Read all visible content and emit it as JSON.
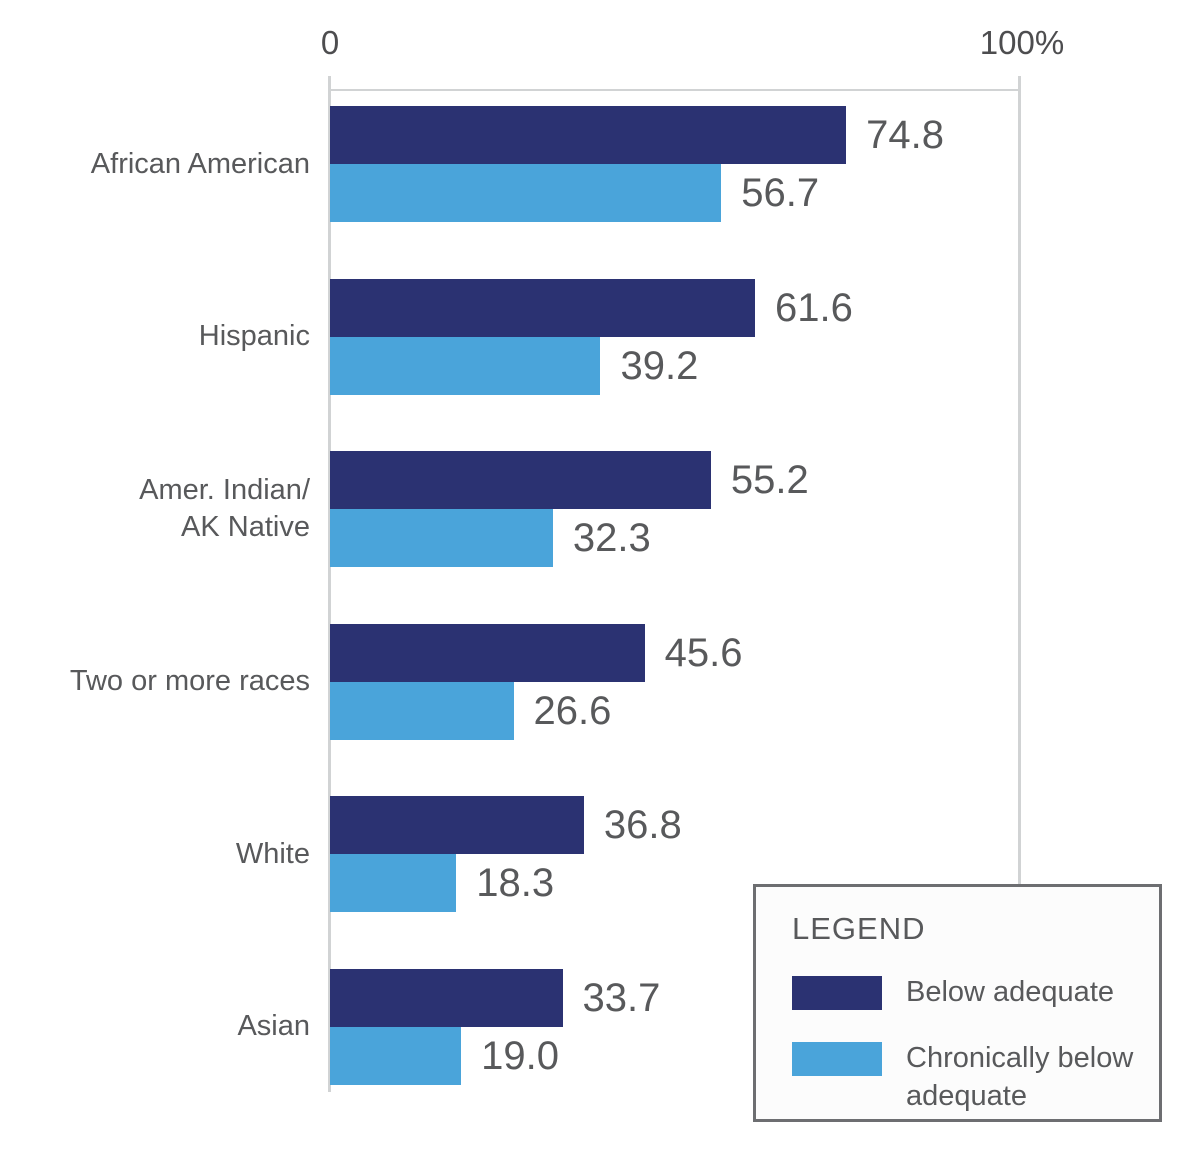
{
  "chart_data": {
    "type": "bar",
    "orientation": "horizontal",
    "title": "",
    "x_axis": {
      "min_label": "0",
      "max_label": "100%",
      "range": [
        0,
        100
      ],
      "position": "top"
    },
    "grid": false,
    "categories": [
      "African American",
      "Hispanic",
      "Amer. Indian/\nAK Native",
      "Two or more races",
      "White",
      "Asian"
    ],
    "series": [
      {
        "name": "Below adequate",
        "color": "#2b3272",
        "values": [
          74.8,
          61.6,
          55.2,
          45.6,
          36.8,
          33.7
        ]
      },
      {
        "name": "Chronically below adequate",
        "color": "#4aa4da",
        "values": [
          56.7,
          39.2,
          32.3,
          26.6,
          18.3,
          19.0
        ]
      }
    ],
    "value_label_decimals": 1,
    "legend": {
      "title": "LEGEND",
      "position": "bottom-right"
    }
  },
  "colors": {
    "background": "#ffffff",
    "axis_line": "#d1d3d4",
    "text": "#58595b",
    "tick_text": "#4d4d4f",
    "legend_border": "#6d6e71",
    "legend_background": "#fcfcfc"
  }
}
